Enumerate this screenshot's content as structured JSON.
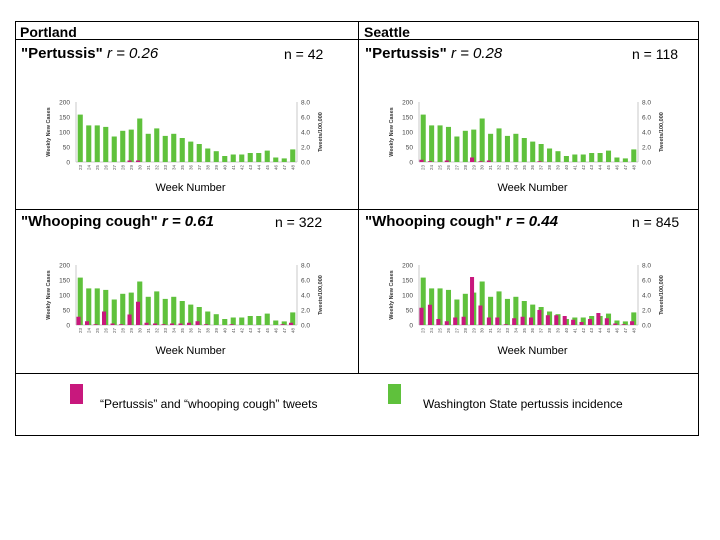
{
  "panels": {
    "portland": "Portland",
    "seattle": "Seattle"
  },
  "legend": {
    "tweets_label": "“Pertussis” and “whooping cough” tweets",
    "incidence_label": "Washington State pertussis incidence",
    "tweets_color": "#c8187d",
    "incidence_color": "#5fc13c"
  },
  "chart_data": [
    {
      "type": "bar",
      "title": "\"Pertussis\"",
      "r_label": "r = 0.26",
      "n_label": "n = 42",
      "xlabel": "Week Number",
      "ylabel": "Weekly New Cases",
      "y2label": "Tweets/100,000",
      "ylim": [
        0,
        200
      ],
      "y2lim": [
        0,
        8
      ],
      "yticks": [
        "0",
        "50",
        "100",
        "150",
        "200"
      ],
      "y2ticks": [
        "0.0",
        "2.0",
        "4.0",
        "6.0",
        "8.0"
      ],
      "categories": [
        "23",
        "24",
        "25",
        "26",
        "27",
        "28",
        "29",
        "30",
        "31",
        "32",
        "33",
        "34",
        "35",
        "36",
        "37",
        "38",
        "39",
        "40",
        "41",
        "42",
        "43",
        "44",
        "45",
        "46",
        "47",
        "48"
      ],
      "series": [
        {
          "name": "Washington State pertussis incidence",
          "axis": "left",
          "color": "#5fc13c",
          "values": [
            158,
            122,
            122,
            117,
            85,
            104,
            108,
            145,
            94,
            112,
            87,
            94,
            80,
            68,
            60,
            45,
            36,
            20,
            25,
            25,
            30,
            30,
            38,
            15,
            12,
            42
          ]
        },
        {
          "name": "\"Pertussis\" tweets",
          "axis": "right",
          "color": "#c8187d",
          "values": [
            0,
            0,
            0,
            0,
            0,
            0,
            0.2,
            0.2,
            0,
            0,
            0,
            0,
            0,
            0,
            0,
            0,
            0,
            0,
            0,
            0,
            0,
            0,
            0,
            0,
            0,
            0
          ]
        }
      ]
    },
    {
      "type": "bar",
      "title": "\"Pertussis\"",
      "r_label": "r = 0.28",
      "n_label": "n = 118",
      "xlabel": "Week Number",
      "ylabel": "Weekly New Cases",
      "y2label": "Tweets/100,000",
      "ylim": [
        0,
        200
      ],
      "y2lim": [
        0,
        8
      ],
      "yticks": [
        "0",
        "50",
        "100",
        "150",
        "200"
      ],
      "y2ticks": [
        "0.0",
        "2.0",
        "4.0",
        "6.0",
        "8.0"
      ],
      "categories": [
        "23",
        "24",
        "25",
        "26",
        "27",
        "28",
        "29",
        "30",
        "31",
        "32",
        "33",
        "34",
        "35",
        "36",
        "37",
        "38",
        "39",
        "40",
        "41",
        "42",
        "43",
        "44",
        "45",
        "46",
        "47",
        "48"
      ],
      "series": [
        {
          "name": "Washington State pertussis incidence",
          "axis": "left",
          "color": "#5fc13c",
          "values": [
            158,
            122,
            122,
            117,
            85,
            104,
            108,
            145,
            94,
            112,
            87,
            94,
            80,
            68,
            60,
            45,
            36,
            20,
            25,
            25,
            30,
            30,
            38,
            15,
            12,
            42
          ]
        },
        {
          "name": "\"Pertussis\" tweets",
          "axis": "right",
          "color": "#c8187d",
          "values": [
            0.3,
            0.1,
            0,
            0.2,
            0,
            0,
            0.6,
            0.1,
            0.2,
            0,
            0,
            0,
            0,
            0,
            0.1,
            0,
            0,
            0,
            0,
            0,
            0,
            0,
            0,
            0,
            0,
            0
          ]
        }
      ]
    },
    {
      "type": "bar",
      "title": "\"Whooping cough\"",
      "r_label": "r = 0.61",
      "n_label": "n = 322",
      "xlabel": "Week Number",
      "ylabel": "Weekly New Cases",
      "y2label": "Tweets/100,000",
      "ylim": [
        0,
        200
      ],
      "y2lim": [
        0,
        8
      ],
      "yticks": [
        "0",
        "50",
        "100",
        "150",
        "200"
      ],
      "y2ticks": [
        "0.0",
        "2.0",
        "4.0",
        "6.0",
        "8.0"
      ],
      "categories": [
        "23",
        "24",
        "25",
        "26",
        "27",
        "28",
        "29",
        "30",
        "31",
        "32",
        "33",
        "34",
        "35",
        "36",
        "37",
        "38",
        "39",
        "40",
        "41",
        "42",
        "43",
        "44",
        "45",
        "46",
        "47",
        "48"
      ],
      "series": [
        {
          "name": "Washington State pertussis incidence",
          "axis": "left",
          "color": "#5fc13c",
          "values": [
            158,
            122,
            122,
            117,
            85,
            104,
            108,
            145,
            94,
            112,
            87,
            94,
            80,
            68,
            60,
            45,
            36,
            20,
            25,
            25,
            30,
            30,
            38,
            15,
            12,
            42
          ]
        },
        {
          "name": "\"Whooping cough\" tweets",
          "axis": "right",
          "color": "#c8187d",
          "values": [
            1.1,
            0.5,
            0.1,
            1.8,
            0.2,
            0.1,
            1.4,
            3.1,
            0.3,
            0.2,
            0.1,
            0.2,
            0.2,
            0.3,
            0.5,
            0.1,
            0,
            0,
            0.1,
            0,
            0,
            0,
            0,
            0,
            0.1,
            0.3
          ]
        }
      ]
    },
    {
      "type": "bar",
      "title": "\"Whooping cough\"",
      "r_label": "r = 0.44",
      "n_label": "n = 845",
      "xlabel": "Week Number",
      "ylabel": "Weekly New Cases",
      "y2label": "Tweets/100,000",
      "ylim": [
        0,
        200
      ],
      "y2lim": [
        0,
        8
      ],
      "yticks": [
        "0",
        "50",
        "100",
        "150",
        "200"
      ],
      "y2ticks": [
        "0.0",
        "2.0",
        "4.0",
        "6.0",
        "8.0"
      ],
      "categories": [
        "23",
        "24",
        "25",
        "26",
        "27",
        "28",
        "29",
        "30",
        "31",
        "32",
        "33",
        "34",
        "35",
        "36",
        "37",
        "38",
        "39",
        "40",
        "41",
        "42",
        "43",
        "44",
        "45",
        "46",
        "47",
        "48"
      ],
      "series": [
        {
          "name": "Washington State pertussis incidence",
          "axis": "left",
          "color": "#5fc13c",
          "values": [
            158,
            122,
            122,
            117,
            85,
            104,
            108,
            145,
            94,
            112,
            87,
            94,
            80,
            68,
            60,
            45,
            36,
            20,
            25,
            25,
            30,
            30,
            38,
            15,
            12,
            42
          ]
        },
        {
          "name": "\"Whooping cough\" tweets",
          "axis": "right",
          "color": "#c8187d",
          "values": [
            2.3,
            2.7,
            0.8,
            0.5,
            1.0,
            1.1,
            6.4,
            2.6,
            1.0,
            1.0,
            0.1,
            0.9,
            1.1,
            1.0,
            2.0,
            1.3,
            1.3,
            1.2,
            0.7,
            0.4,
            0.8,
            1.6,
            0.9,
            0.2,
            0.1,
            0.5
          ]
        }
      ]
    }
  ]
}
